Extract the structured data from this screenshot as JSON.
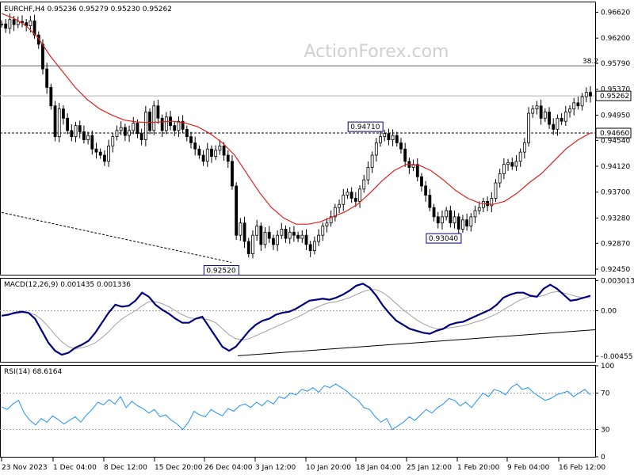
{
  "chart_data": [
    {
      "type": "candlestick",
      "header": {
        "symbol": "EURCHF,H4",
        "open": "0.95236",
        "high": "0.95279",
        "low": "0.95230",
        "close": "0.95262"
      },
      "watermark": "ActionForex.com",
      "ylim": [
        0.9236,
        0.9678
      ],
      "yticks": [
        "0.96620",
        "0.96200",
        "0.95790",
        "0.95370",
        "0.94950",
        "0.94540",
        "0.94120",
        "0.93700",
        "0.93280",
        "0.92870",
        "0.92450"
      ],
      "current_price": "0.95262",
      "level_marker": "0.94660",
      "fib_level": {
        "label": "38.2",
        "value": 0.9575
      },
      "price_callouts": [
        {
          "label": "0.92520",
          "x": "27 Dec",
          "value": 0.9252
        },
        {
          "label": "0.94710",
          "x": "18 Jan",
          "value": 0.9471
        },
        {
          "label": "0.93040",
          "x": "26 Jan",
          "value": 0.9304
        }
      ],
      "series": [
        {
          "name": "",
          "values": [
            0.9643,
            0.9636,
            0.965,
            0.9642,
            0.9647,
            0.9645,
            0.964,
            0.9648,
            0.9625,
            0.961,
            0.957,
            0.954,
            0.951,
            0.946,
            0.9505,
            0.949,
            0.947,
            0.946,
            0.9478,
            0.9468,
            0.9455,
            0.9462,
            0.944,
            0.9435,
            0.943,
            0.942,
            0.9445,
            0.946,
            0.947,
            0.9475,
            0.9462,
            0.947,
            0.9482,
            0.9465,
            0.9455,
            0.95,
            0.947,
            0.951,
            0.949,
            0.947,
            0.9492,
            0.9478,
            0.947,
            0.9485,
            0.9472,
            0.946,
            0.945,
            0.944,
            0.943,
            0.942,
            0.944,
            0.9428,
            0.9438,
            0.9445,
            0.943,
            0.942,
            0.938,
            0.93,
            0.932,
            0.929,
            0.927,
            0.93,
            0.9315,
            0.9285,
            0.9305,
            0.9295,
            0.9285,
            0.93,
            0.931,
            0.9295,
            0.9305,
            0.93,
            0.9295,
            0.93,
            0.9285,
            0.9275,
            0.929,
            0.93,
            0.9315,
            0.932,
            0.933,
            0.9345,
            0.935,
            0.9365,
            0.937,
            0.936,
            0.9355,
            0.9375,
            0.939,
            0.941,
            0.943,
            0.945,
            0.946,
            0.9465,
            0.9455,
            0.9462,
            0.945,
            0.944,
            0.942,
            0.941,
            0.9415,
            0.9395,
            0.938,
            0.9365,
            0.9345,
            0.933,
            0.932,
            0.933,
            0.934,
            0.932,
            0.933,
            0.931,
            0.9325,
            0.9315,
            0.933,
            0.934,
            0.9345,
            0.9355,
            0.9348,
            0.936,
            0.9385,
            0.94,
            0.9415,
            0.9418,
            0.9412,
            0.942,
            0.9435,
            0.945,
            0.9498,
            0.9505,
            0.951,
            0.949,
            0.95,
            0.948,
            0.9472,
            0.949,
            0.9485,
            0.95,
            0.9505,
            0.9515,
            0.951,
            0.9525,
            0.9532,
            0.9526
          ]
        },
        {
          "name": "",
          "values": [
            0.966,
            0.9652,
            0.964,
            0.962,
            0.959,
            0.9565,
            0.954,
            0.952,
            0.9505,
            0.9495,
            0.9487,
            0.9484,
            0.9483,
            0.9484,
            0.9485,
            0.9482,
            0.9476,
            0.9465,
            0.945,
            0.943,
            0.94,
            0.937,
            0.9345,
            0.9328,
            0.9318,
            0.9318,
            0.9322,
            0.933,
            0.9338,
            0.935,
            0.9368,
            0.9388,
            0.9405,
            0.9415,
            0.9414,
            0.9405,
            0.939,
            0.9373,
            0.936,
            0.9352,
            0.935,
            0.9355,
            0.9368,
            0.9385,
            0.94,
            0.942,
            0.944,
            0.9455,
            0.9466
          ]
        }
      ]
    },
    {
      "type": "line",
      "title": "MACD(12,26,9) 0.001435 0.001336",
      "ylim": [
        -0.0051,
        0.0032
      ],
      "yticks": [
        "0.003013",
        "0.00",
        "-0.00455"
      ],
      "series": [
        {
          "name": "",
          "values": [
            -0.0005,
            -0.0004,
            -0.0002,
            -0.0001,
            -0.0002,
            -0.0008,
            -0.002,
            -0.0032,
            -0.004,
            -0.0044,
            -0.0042,
            -0.0037,
            -0.0034,
            -0.003,
            -0.0022,
            -0.0012,
            -0.0002,
            0.0006,
            0.0004,
            0.0005,
            0.001,
            0.0018,
            0.0014,
            0.0006,
            0.0001,
            -0.0003,
            -0.0008,
            -0.0012,
            -0.0012,
            -0.0008,
            -0.0006,
            -0.0016,
            -0.0026,
            -0.0036,
            -0.004,
            -0.0036,
            -0.0028,
            -0.002,
            -0.0014,
            -0.001,
            -0.0008,
            -0.0004,
            -0.0002,
            -0.0001,
            0.0002,
            0.0006,
            0.001,
            0.0011,
            0.0012,
            0.0011,
            0.0013,
            0.0016,
            0.002,
            0.0025,
            0.0027,
            0.0023,
            0.0015,
            0.0005,
            -0.0003,
            -0.001,
            -0.0014,
            -0.0018,
            -0.002,
            -0.0022,
            -0.0023,
            -0.002,
            -0.0018,
            -0.0014,
            -0.0012,
            -0.0011,
            -0.0008,
            -0.0005,
            -0.0002,
            0.0001,
            0.0006,
            0.0013,
            0.0016,
            0.0018,
            0.0018,
            0.0015,
            0.0014,
            0.0022,
            0.0026,
            0.0022,
            0.0016,
            0.001,
            0.0011,
            0.0013,
            0.0015
          ]
        },
        {
          "name": "",
          "values": [
            -0.0005,
            -0.0004,
            -0.0003,
            -0.0002,
            -0.0002,
            -0.0004,
            -0.0009,
            -0.0016,
            -0.0024,
            -0.0031,
            -0.0036,
            -0.0038,
            -0.0037,
            -0.0035,
            -0.0032,
            -0.0027,
            -0.0021,
            -0.0014,
            -0.0008,
            -0.0004,
            0.0,
            0.0005,
            0.0009,
            0.0009,
            0.0007,
            0.0004,
            0.0,
            -0.0004,
            -0.0007,
            -0.0008,
            -0.0008,
            -0.0009,
            -0.0012,
            -0.0018,
            -0.0024,
            -0.0028,
            -0.0029,
            -0.0028,
            -0.0025,
            -0.0022,
            -0.0019,
            -0.0016,
            -0.0013,
            -0.001,
            -0.0007,
            -0.0004,
            0.0,
            0.0003,
            0.0006,
            0.0008,
            0.0009,
            0.0011,
            0.0013,
            0.0016,
            0.0019,
            0.0021,
            0.0021,
            0.0018,
            0.0013,
            0.0007,
            0.0001,
            -0.0004,
            -0.0009,
            -0.0013,
            -0.0016,
            -0.0018,
            -0.0018,
            -0.0017,
            -0.0016,
            -0.0015,
            -0.0013,
            -0.0011,
            -0.0009,
            -0.0006,
            -0.0003,
            0.0001,
            0.0005,
            0.0009,
            0.0012,
            0.0014,
            0.0014,
            0.0015,
            0.0018,
            0.0019,
            0.0018,
            0.0016,
            0.0014,
            0.0013,
            0.0013
          ]
        }
      ]
    },
    {
      "type": "line",
      "title": "RSI(14) 68.6164",
      "ylim": [
        0,
        100
      ],
      "yticks": [
        "100",
        "70",
        "30",
        "0"
      ],
      "levels": [
        70,
        30
      ],
      "series": [
        {
          "name": "",
          "values": [
            55,
            52,
            58,
            62,
            48,
            40,
            35,
            42,
            38,
            45,
            41,
            36,
            40,
            44,
            38,
            46,
            52,
            60,
            57,
            63,
            58,
            66,
            54,
            61,
            56,
            53,
            48,
            52,
            44,
            46,
            40,
            36,
            30,
            38,
            50,
            46,
            44,
            52,
            48,
            45,
            53,
            50,
            56,
            58,
            54,
            60,
            56,
            62,
            58,
            66,
            64,
            70,
            68,
            74,
            72,
            76,
            71,
            78,
            76,
            80,
            76,
            72,
            66,
            62,
            54,
            52,
            44,
            38,
            42,
            30,
            34,
            38,
            44,
            40,
            46,
            52,
            48,
            54,
            58,
            64,
            62,
            56,
            60,
            54,
            62,
            70,
            66,
            74,
            72,
            68,
            76,
            80,
            74,
            76,
            70,
            66,
            62,
            64,
            68,
            70,
            72,
            66,
            70,
            74,
            68
          ]
        }
      ]
    }
  ],
  "x_axis_labels": [
    "23 Nov 2023",
    "1 Dec 04:00",
    "8 Dec 12:00",
    "15 Dec 20:00",
    "26 Dec 04:00",
    "3 Jan 12:00",
    "10 Jan 20:00",
    "18 Jan 04:00",
    "25 Jan 12:00",
    "1 Feb 20:00",
    "9 Feb 04:00",
    "16 Feb 12:00"
  ],
  "colors": {
    "candles": "#000000",
    "moving_average": "#e0201d",
    "macd_line": "#000080",
    "macd_signal": "#a0a0a0",
    "rsi_line": "#1e90ff",
    "current_price_line": "#b0b0b0"
  }
}
